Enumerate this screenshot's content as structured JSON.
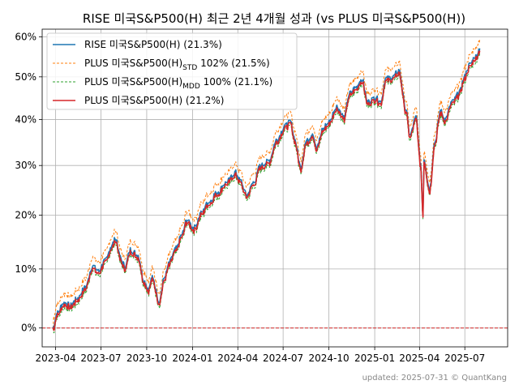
{
  "chart_data": {
    "type": "line",
    "title": "RISE 미국S&P500(H) 최근 2년 4개월 성과 (vs PLUS 미국S&P500(H))",
    "footer": "updated: 2025-07-31 © QuantKang",
    "xlabel": "",
    "ylabel": "",
    "y_scale": "log1p",
    "ylim": [
      -3,
      62
    ],
    "xlim": [
      "2023-03-05",
      "2025-09-25"
    ],
    "x_ticks": [
      "2023-04",
      "2023-07",
      "2023-10",
      "2024-01",
      "2024-04",
      "2024-07",
      "2024-10",
      "2025-01",
      "2025-04",
      "2025-07"
    ],
    "y_ticks": [
      0,
      10,
      20,
      30,
      40,
      50,
      60
    ],
    "y_tick_labels": [
      "0%",
      "10%",
      "20%",
      "30%",
      "40%",
      "50%",
      "60%"
    ],
    "grid": true,
    "legend_position": "top-left",
    "zero_line_color": "#d62728",
    "series": [
      {
        "name": "RISE 미국S&P500(H)  (21.3%)",
        "color": "#1f77b4",
        "style": "solid"
      },
      {
        "name": "PLUS 미국S&P500(H)",
        "subscript": "STD",
        "suffix": " 102% (21.5%)",
        "color": "#ff7f0e",
        "style": "dashed"
      },
      {
        "name": "PLUS 미국S&P500(H)",
        "subscript": "MDD",
        "suffix": " 100%  (21.1%)",
        "color": "#2ca02c",
        "style": "dashed"
      },
      {
        "name": "PLUS 미국S&P500(H)  (21.2%)",
        "color": "#d62728",
        "style": "solid"
      }
    ],
    "anchor_points": [
      [
        "2023-03-27",
        0
      ],
      [
        "2023-04-04",
        2.5
      ],
      [
        "2023-04-18",
        4.2
      ],
      [
        "2023-05-02",
        3.8
      ],
      [
        "2023-05-16",
        5
      ],
      [
        "2023-05-31",
        6.8
      ],
      [
        "2023-06-14",
        10.5
      ],
      [
        "2023-06-26",
        9.6
      ],
      [
        "2023-07-10",
        11.5
      ],
      [
        "2023-07-24",
        14.5
      ],
      [
        "2023-07-31",
        15.6
      ],
      [
        "2023-08-09",
        12
      ],
      [
        "2023-08-18",
        10.5
      ],
      [
        "2023-08-30",
        13.5
      ],
      [
        "2023-09-14",
        12.5
      ],
      [
        "2023-09-25",
        8
      ],
      [
        "2023-10-05",
        6.5
      ],
      [
        "2023-10-12",
        8.5
      ],
      [
        "2023-10-26",
        4.5
      ],
      [
        "2023-11-06",
        8.5
      ],
      [
        "2023-11-15",
        11
      ],
      [
        "2023-11-28",
        13.5
      ],
      [
        "2023-12-12",
        16.5
      ],
      [
        "2023-12-20",
        19
      ],
      [
        "2024-01-05",
        17.5
      ],
      [
        "2024-01-19",
        20.5
      ],
      [
        "2024-02-02",
        22.5
      ],
      [
        "2024-02-20",
        24.5
      ],
      [
        "2024-03-08",
        26.5
      ],
      [
        "2024-03-28",
        28.5
      ],
      [
        "2024-04-05",
        27
      ],
      [
        "2024-04-19",
        24
      ],
      [
        "2024-05-03",
        26.5
      ],
      [
        "2024-05-17",
        30
      ],
      [
        "2024-06-03",
        31
      ],
      [
        "2024-06-18",
        35.5
      ],
      [
        "2024-07-05",
        38.5
      ],
      [
        "2024-07-16",
        39.5
      ],
      [
        "2024-07-25",
        35.5
      ],
      [
        "2024-08-05",
        29.5
      ],
      [
        "2024-08-16",
        35
      ],
      [
        "2024-08-30",
        37
      ],
      [
        "2024-09-06",
        33.5
      ],
      [
        "2024-09-19",
        38
      ],
      [
        "2024-10-01",
        39.5
      ],
      [
        "2024-10-17",
        43
      ],
      [
        "2024-11-01",
        40.5
      ],
      [
        "2024-11-11",
        46
      ],
      [
        "2024-11-25",
        47.5
      ],
      [
        "2024-12-06",
        49.5
      ],
      [
        "2024-12-18",
        44
      ],
      [
        "2025-01-02",
        45
      ],
      [
        "2025-01-13",
        44
      ],
      [
        "2025-01-23",
        49.5
      ],
      [
        "2025-02-06",
        50
      ],
      [
        "2025-02-19",
        51.5
      ],
      [
        "2025-03-04",
        42.5
      ],
      [
        "2025-03-13",
        36.5
      ],
      [
        "2025-03-25",
        40.5
      ],
      [
        "2025-04-03",
        30.5
      ],
      [
        "2025-04-08",
        20.5
      ],
      [
        "2025-04-10",
        31.5
      ],
      [
        "2025-04-21",
        25
      ],
      [
        "2025-05-02",
        35
      ],
      [
        "2025-05-13",
        42
      ],
      [
        "2025-05-23",
        40
      ],
      [
        "2025-06-05",
        44
      ],
      [
        "2025-06-20",
        46
      ],
      [
        "2025-06-30",
        50
      ],
      [
        "2025-07-11",
        53
      ],
      [
        "2025-07-22",
        55
      ],
      [
        "2025-07-31",
        57
      ]
    ]
  }
}
